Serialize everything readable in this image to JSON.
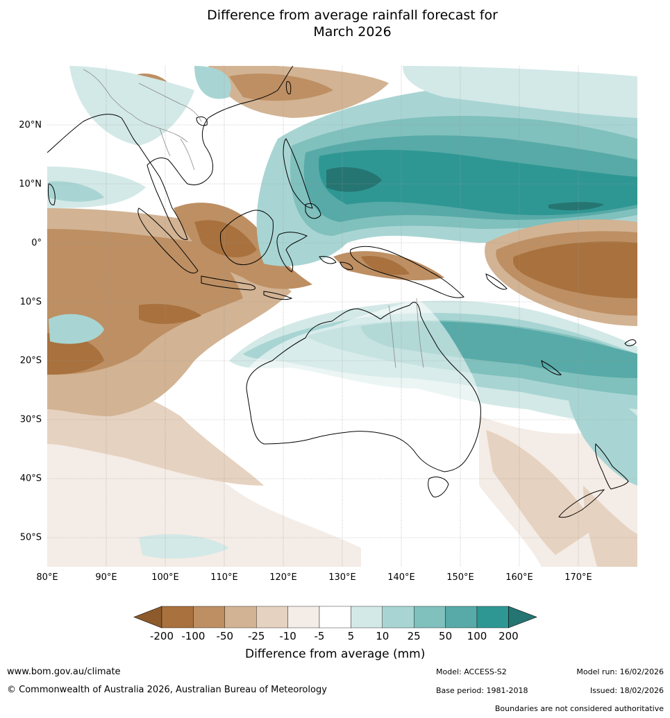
{
  "title": {
    "line1": "Difference from average rainfall forecast for",
    "line2": "March 2026"
  },
  "map": {
    "lat_labels": [
      "20°N",
      "10°N",
      "0°",
      "10°S",
      "20°S",
      "30°S",
      "40°S",
      "50°S"
    ],
    "lon_labels": [
      "80°E",
      "90°E",
      "100°E",
      "110°E",
      "120°E",
      "130°E",
      "140°E",
      "150°E",
      "160°E",
      "170°E"
    ],
    "lat_values": [
      20,
      10,
      0,
      -10,
      -20,
      -30,
      -40,
      -50
    ],
    "lon_values": [
      80,
      90,
      100,
      110,
      120,
      130,
      140,
      150,
      160,
      170
    ],
    "lat_range": [
      -55,
      30
    ],
    "lon_range": [
      80,
      180
    ]
  },
  "colorbar": {
    "labels": [
      "-200",
      "-100",
      "-50",
      "-25",
      "-10",
      "-5",
      "5",
      "10",
      "25",
      "50",
      "100",
      "200"
    ],
    "colors": [
      "#a8713d",
      "#bd8f63",
      "#d2b393",
      "#e6d2c0",
      "#f4ece6",
      "#ffffff",
      "#d3e9e7",
      "#a8d5d3",
      "#80c0bd",
      "#57aaa7",
      "#2f9793"
    ],
    "under_color": "#8d5a2b",
    "over_color": "#257572",
    "label": "Difference from average (mm)"
  },
  "footer": {
    "url": "www.bom.gov.au/climate",
    "copyright": "© Commonwealth of Australia 2026, Australian Bureau of Meteorology",
    "model": "Model: ACCESS-S2",
    "base_period": "Base period: 1981-2018",
    "model_run": "Model run: 16/02/2026",
    "issued": "Issued: 18/02/2026",
    "disclaimer": "Boundaries are not considered authoritative"
  }
}
